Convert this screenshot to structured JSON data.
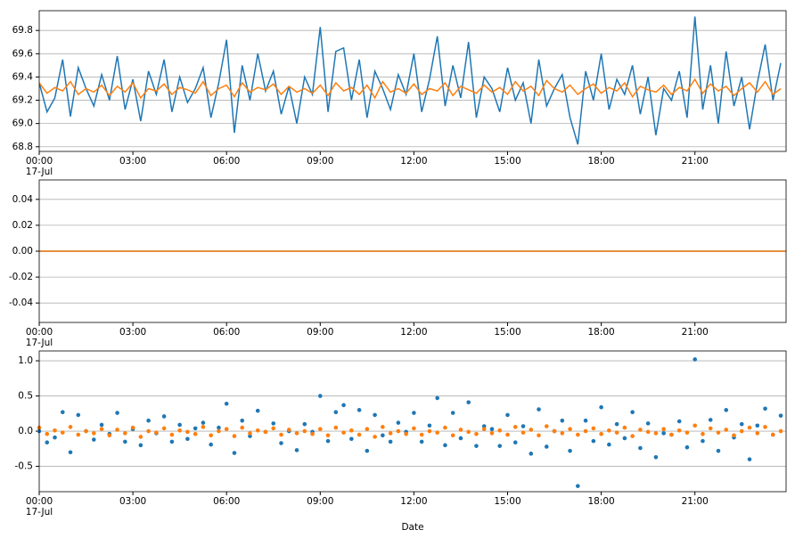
{
  "chart_data": [
    {
      "type": "line",
      "xdate_label": "17-Jul",
      "x": [
        0,
        0.25,
        0.5,
        0.75,
        1,
        1.25,
        1.5,
        1.75,
        2,
        2.25,
        2.5,
        2.75,
        3,
        3.25,
        3.5,
        3.75,
        4,
        4.25,
        4.5,
        4.75,
        5,
        5.25,
        5.5,
        5.75,
        6,
        6.25,
        6.5,
        6.75,
        7,
        7.25,
        7.5,
        7.75,
        8,
        8.25,
        8.5,
        8.75,
        9,
        9.25,
        9.5,
        9.75,
        10,
        10.25,
        10.5,
        10.75,
        11,
        11.25,
        11.5,
        11.75,
        12,
        12.25,
        12.5,
        12.75,
        13,
        13.25,
        13.5,
        13.75,
        14,
        14.25,
        14.5,
        14.75,
        15,
        15.25,
        15.5,
        15.75,
        16,
        16.25,
        16.5,
        16.75,
        17,
        17.25,
        17.5,
        17.75,
        18,
        18.25,
        18.5,
        18.75,
        19,
        19.25,
        19.5,
        19.75,
        20,
        20.25,
        20.5,
        20.75,
        21,
        21.25,
        21.5,
        21.75,
        22,
        22.25,
        22.5,
        22.75,
        23,
        23.25,
        23.5,
        23.75
      ],
      "xlim": [
        0,
        23.92
      ],
      "xticks": [
        {
          "value": 0,
          "label": "00:00"
        },
        {
          "value": 3,
          "label": "03:00"
        },
        {
          "value": 6,
          "label": "06:00"
        },
        {
          "value": 9,
          "label": "09:00"
        },
        {
          "value": 12,
          "label": "12:00"
        },
        {
          "value": 15,
          "label": "15:00"
        },
        {
          "value": 18,
          "label": "18:00"
        },
        {
          "value": 21,
          "label": "21:00"
        }
      ],
      "ylim": [
        68.76,
        69.97
      ],
      "yticks": [
        68.8,
        {
          "value": 69,
          "label": "69.0"
        },
        69.2,
        69.4,
        69.6,
        69.8
      ],
      "grid": true,
      "series": [
        {
          "color": "#1f77b4",
          "values": [
            69.35,
            69.1,
            69.22,
            69.55,
            69.06,
            69.48,
            69.3,
            69.15,
            69.42,
            69.2,
            69.58,
            69.12,
            69.38,
            69.02,
            69.45,
            69.25,
            69.55,
            69.1,
            69.4,
            69.18,
            69.3,
            69.48,
            69.05,
            69.35,
            69.72,
            68.92,
            69.5,
            69.2,
            69.6,
            69.28,
            69.45,
            69.08,
            69.32,
            69.0,
            69.4,
            69.25,
            69.83,
            69.1,
            69.62,
            69.65,
            69.2,
            69.55,
            69.05,
            69.45,
            69.3,
            69.12,
            69.42,
            69.25,
            69.6,
            69.1,
            69.38,
            69.75,
            69.15,
            69.5,
            69.22,
            69.7,
            69.05,
            69.4,
            69.3,
            69.1,
            69.48,
            69.2,
            69.35,
            69.0,
            69.55,
            69.15,
            69.3,
            69.42,
            69.05,
            68.82,
            69.45,
            69.2,
            69.6,
            69.12,
            69.38,
            69.25,
            69.5,
            69.08,
            69.4,
            68.9,
            69.3,
            69.2,
            69.45,
            69.05,
            69.92,
            69.12,
            69.5,
            69.0,
            69.62,
            69.15,
            69.4,
            68.95,
            69.35,
            69.68,
            69.2,
            69.52
          ]
        },
        {
          "color": "#ff7f0e",
          "values": [
            69.35,
            69.26,
            69.31,
            69.28,
            69.36,
            69.25,
            69.3,
            69.27,
            69.33,
            69.24,
            69.32,
            69.27,
            69.35,
            69.22,
            69.3,
            69.28,
            69.34,
            69.25,
            69.31,
            69.29,
            69.26,
            69.36,
            69.24,
            69.3,
            69.33,
            69.23,
            69.35,
            69.27,
            69.31,
            69.29,
            69.34,
            69.25,
            69.32,
            69.27,
            69.3,
            69.26,
            69.33,
            69.24,
            69.35,
            69.28,
            69.31,
            69.25,
            69.33,
            69.22,
            69.36,
            69.27,
            69.3,
            69.26,
            69.34,
            69.25,
            69.3,
            69.28,
            69.35,
            69.24,
            69.32,
            69.29,
            69.26,
            69.33,
            69.27,
            69.31,
            69.25,
            69.36,
            69.28,
            69.32,
            69.24,
            69.37,
            69.3,
            69.27,
            69.33,
            69.25,
            69.3,
            69.34,
            69.26,
            69.31,
            69.28,
            69.35,
            69.23,
            69.32,
            69.29,
            69.27,
            69.33,
            69.25,
            69.31,
            69.28,
            69.38,
            69.26,
            69.34,
            69.28,
            69.32,
            69.24,
            69.3,
            69.35,
            69.27,
            69.36,
            69.25,
            69.3
          ]
        }
      ]
    },
    {
      "type": "line",
      "xdate_label": "17-Jul",
      "x": [
        0,
        23.92
      ],
      "xlim": [
        0,
        23.92
      ],
      "xticks": [
        {
          "value": 0,
          "label": "00:00"
        },
        {
          "value": 3,
          "label": "03:00"
        },
        {
          "value": 6,
          "label": "06:00"
        },
        {
          "value": 9,
          "label": "09:00"
        },
        {
          "value": 12,
          "label": "12:00"
        },
        {
          "value": 15,
          "label": "15:00"
        },
        {
          "value": 18,
          "label": "18:00"
        },
        {
          "value": 21,
          "label": "21:00"
        }
      ],
      "ylim": [
        -0.055,
        0.055
      ],
      "yticks": [
        -0.04,
        -0.02,
        {
          "value": 0,
          "label": "0.00"
        },
        0.02,
        0.04
      ],
      "grid": true,
      "series": [
        {
          "color": "#1f77b4",
          "values": [
            0,
            0
          ]
        },
        {
          "color": "#ff7f0e",
          "values": [
            0,
            0
          ]
        }
      ]
    },
    {
      "type": "scatter",
      "xdate_label": "17-Jul",
      "xlabel": "Date",
      "x": [
        0,
        0.25,
        0.5,
        0.75,
        1,
        1.25,
        1.5,
        1.75,
        2,
        2.25,
        2.5,
        2.75,
        3,
        3.25,
        3.5,
        3.75,
        4,
        4.25,
        4.5,
        4.75,
        5,
        5.25,
        5.5,
        5.75,
        6,
        6.25,
        6.5,
        6.75,
        7,
        7.25,
        7.5,
        7.75,
        8,
        8.25,
        8.5,
        8.75,
        9,
        9.25,
        9.5,
        9.75,
        10,
        10.25,
        10.5,
        10.75,
        11,
        11.25,
        11.5,
        11.75,
        12,
        12.25,
        12.5,
        12.75,
        13,
        13.25,
        13.5,
        13.75,
        14,
        14.25,
        14.5,
        14.75,
        15,
        15.25,
        15.5,
        15.75,
        16,
        16.25,
        16.5,
        16.75,
        17,
        17.25,
        17.5,
        17.75,
        18,
        18.25,
        18.5,
        18.75,
        19,
        19.25,
        19.5,
        19.75,
        20,
        20.25,
        20.5,
        20.75,
        21,
        21.25,
        21.5,
        21.75,
        22,
        22.25,
        22.5,
        22.75,
        23,
        23.25,
        23.5,
        23.75
      ],
      "xlim": [
        0,
        23.92
      ],
      "xticks": [
        {
          "value": 0,
          "label": "00:00"
        },
        {
          "value": 3,
          "label": "03:00"
        },
        {
          "value": 6,
          "label": "06:00"
        },
        {
          "value": 9,
          "label": "09:00"
        },
        {
          "value": 12,
          "label": "12:00"
        },
        {
          "value": 15,
          "label": "15:00"
        },
        {
          "value": 18,
          "label": "18:00"
        },
        {
          "value": 21,
          "label": "21:00"
        }
      ],
      "ylim": [
        -0.86,
        1.14
      ],
      "yticks": [
        -0.5,
        {
          "value": 0,
          "label": "0.0"
        },
        0.5,
        {
          "value": 1,
          "label": "1.0"
        }
      ],
      "grid": true,
      "series": [
        {
          "color": "#1f77b4",
          "values": [
            0.0,
            -0.16,
            -0.09,
            0.27,
            -0.3,
            0.23,
            0.0,
            -0.12,
            0.09,
            -0.04,
            0.26,
            -0.15,
            0.03,
            -0.2,
            0.15,
            -0.03,
            0.21,
            -0.15,
            0.09,
            -0.11,
            0.04,
            0.12,
            -0.19,
            0.05,
            0.39,
            -0.31,
            0.15,
            -0.07,
            0.29,
            -0.01,
            0.11,
            -0.17,
            0.0,
            -0.27,
            0.1,
            -0.01,
            0.5,
            -0.14,
            0.27,
            0.37,
            -0.11,
            0.3,
            -0.28,
            0.23,
            -0.06,
            -0.15,
            0.12,
            -0.01,
            0.26,
            -0.15,
            0.08,
            0.47,
            -0.2,
            0.26,
            -0.1,
            0.41,
            -0.21,
            0.07,
            0.03,
            -0.21,
            0.23,
            -0.16,
            0.07,
            -0.32,
            0.31,
            -0.22,
            0.0,
            0.15,
            -0.28,
            -0.78,
            0.15,
            -0.14,
            0.34,
            -0.19,
            0.1,
            -0.1,
            0.27,
            -0.24,
            0.11,
            -0.37,
            -0.03,
            -0.05,
            0.14,
            -0.23,
            1.02,
            -0.14,
            0.16,
            -0.28,
            0.3,
            -0.09,
            0.1,
            -0.4,
            0.08,
            0.32,
            -0.05,
            0.22
          ]
        },
        {
          "color": "#ff7f0e",
          "values": [
            0.05,
            -0.04,
            0.01,
            -0.02,
            0.06,
            -0.05,
            0.0,
            -0.03,
            0.03,
            -0.06,
            0.02,
            -0.03,
            0.05,
            -0.08,
            0.0,
            -0.02,
            0.04,
            -0.05,
            0.01,
            -0.01,
            -0.04,
            0.06,
            -0.06,
            0.0,
            0.03,
            -0.07,
            0.05,
            -0.03,
            0.01,
            -0.01,
            0.04,
            -0.05,
            0.02,
            -0.03,
            0.0,
            -0.04,
            0.03,
            -0.06,
            0.05,
            -0.02,
            0.01,
            -0.05,
            0.03,
            -0.08,
            0.06,
            -0.03,
            0.0,
            -0.04,
            0.04,
            -0.05,
            0.0,
            -0.02,
            0.05,
            -0.06,
            0.02,
            -0.01,
            -0.04,
            0.03,
            -0.03,
            0.01,
            -0.05,
            0.06,
            -0.02,
            0.02,
            -0.06,
            0.07,
            0.0,
            -0.03,
            0.03,
            -0.05,
            0.0,
            0.04,
            -0.04,
            0.01,
            -0.02,
            0.05,
            -0.07,
            0.02,
            -0.01,
            -0.03,
            0.03,
            -0.05,
            0.01,
            -0.02,
            0.08,
            -0.04,
            0.04,
            -0.02,
            0.02,
            -0.06,
            0.0,
            0.05,
            -0.03,
            0.06,
            -0.05,
            0.0
          ]
        }
      ]
    }
  ]
}
